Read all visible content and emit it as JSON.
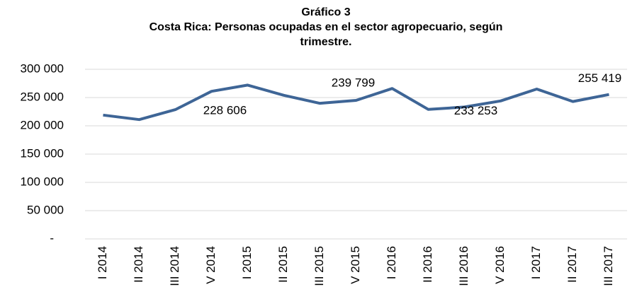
{
  "chart_data": {
    "type": "line",
    "title": [
      "Gráfico 3",
      "Costa Rica: Personas ocupadas en el sector agropecuario, según",
      "trimestre."
    ],
    "categories": [
      "I 2014",
      "II 2014",
      "III 2014",
      "V 2014",
      "I 2015",
      "II 2015",
      "III 2015",
      "V 2015",
      "I 2016",
      "II 2016",
      "III 2016",
      "V 2016",
      "I 2017",
      "II 2017",
      "III 2017"
    ],
    "series": [
      {
        "name": "Personas ocupadas",
        "color": "#3e6596",
        "values": [
          219000,
          211000,
          228606,
          261000,
          272000,
          254000,
          239799,
          245000,
          266000,
          229000,
          233253,
          244000,
          265000,
          243000,
          255419
        ],
        "value_labels": [
          null,
          null,
          "228 606",
          null,
          null,
          null,
          "239 799",
          null,
          null,
          null,
          "233 253",
          null,
          null,
          null,
          "255 419"
        ]
      }
    ],
    "ylim": [
      0,
      300000
    ],
    "yticks": [
      {
        "value": 0,
        "label": "-"
      },
      {
        "value": 50000,
        "label": "50 000"
      },
      {
        "value": 100000,
        "label": "100 000"
      },
      {
        "value": 150000,
        "label": "150 000"
      },
      {
        "value": 200000,
        "label": "200 000"
      },
      {
        "value": 250000,
        "label": "250 000"
      },
      {
        "value": 300000,
        "label": "300 000"
      }
    ],
    "grid": true
  }
}
